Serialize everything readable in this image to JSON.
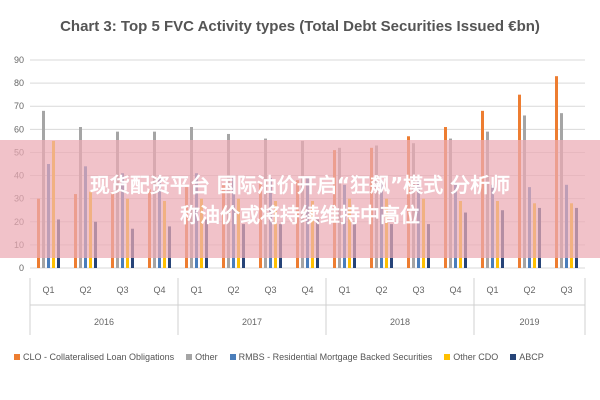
{
  "chart_data": {
    "type": "bar",
    "title": "Chart 3: Top 5 FVC Activity types (Total Debt Securities Issued €bn)",
    "xlabel": "",
    "ylabel": "",
    "ylim": [
      0,
      90
    ],
    "yticks": [
      0,
      10,
      20,
      30,
      40,
      50,
      60,
      70,
      80,
      90
    ],
    "grid": true,
    "legend_position": "bottom",
    "categories": [
      "Q1",
      "Q2",
      "Q3",
      "Q4",
      "Q1",
      "Q2",
      "Q3",
      "Q4",
      "Q1",
      "Q2",
      "Q3",
      "Q4",
      "Q1",
      "Q2",
      "Q3"
    ],
    "groups": [
      {
        "label": "2016",
        "count": 4
      },
      {
        "label": "2017",
        "count": 4
      },
      {
        "label": "2018",
        "count": 4
      },
      {
        "label": "2019",
        "count": 3
      }
    ],
    "series": [
      {
        "name": "CLO - Collateralised Loan Obligations",
        "color": "#ED7D31",
        "values": [
          30,
          32,
          33,
          34,
          35,
          36,
          37,
          38,
          51,
          52,
          57,
          61,
          68,
          75,
          83
        ]
      },
      {
        "name": "Other",
        "color": "#A5A5A5",
        "values": [
          68,
          61,
          59,
          59,
          61,
          58,
          56,
          55,
          52,
          53,
          54,
          56,
          59,
          66,
          67
        ]
      },
      {
        "name": "RMBS - Residential Mortgage Backed Securities",
        "color": "#4A7EBB",
        "values": [
          45,
          44,
          41,
          40,
          41,
          40,
          39,
          39,
          36,
          38,
          38,
          37,
          36,
          35,
          36
        ]
      },
      {
        "name": "Other CDO",
        "color": "#FFC000",
        "values": [
          55,
          33,
          30,
          29,
          30,
          30,
          29,
          29,
          30,
          30,
          30,
          29,
          29,
          28,
          28
        ]
      },
      {
        "name": "ABCP",
        "color": "#264478",
        "values": [
          21,
          20,
          17,
          18,
          21,
          19,
          19,
          21,
          20,
          19,
          19,
          24,
          25,
          26,
          26
        ]
      }
    ]
  },
  "overlay": {
    "line1": "现货配资平台 国际油价开启“狂飙”模式 分析师",
    "line2": "称油价或将持续维持中高位"
  }
}
